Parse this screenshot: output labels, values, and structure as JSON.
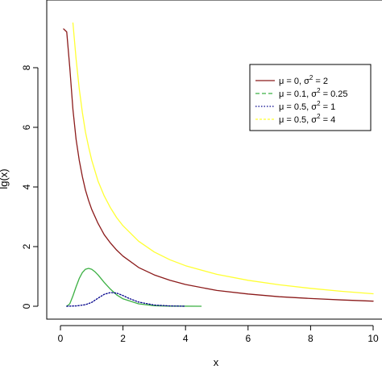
{
  "chart_data": {
    "type": "line",
    "title": "",
    "xlabel": "x",
    "ylabel": "lg(x)",
    "xlim": [
      0,
      10
    ],
    "ylim": [
      0,
      9
    ],
    "xticks": [
      "0",
      "2",
      "4",
      "6",
      "8",
      "10"
    ],
    "yticks": [
      "0",
      "2",
      "4",
      "6",
      "8"
    ],
    "legend_position": "top-right",
    "series": [
      {
        "legend": {
          "pre": "μ = 0,   σ",
          "sup": "2",
          "post": " = 2"
        },
        "color": "#8b1a1a",
        "style": "solid",
        "points": [
          [
            0.1,
            9.3
          ],
          [
            0.2,
            9.2
          ],
          [
            0.3,
            8.0
          ],
          [
            0.4,
            6.6
          ],
          [
            0.5,
            5.6
          ],
          [
            0.6,
            4.9
          ],
          [
            0.7,
            4.35
          ],
          [
            0.8,
            3.9
          ],
          [
            0.9,
            3.55
          ],
          [
            1.0,
            3.25
          ],
          [
            1.2,
            2.78
          ],
          [
            1.4,
            2.4
          ],
          [
            1.6,
            2.12
          ],
          [
            1.8,
            1.88
          ],
          [
            2.0,
            1.68
          ],
          [
            2.5,
            1.3
          ],
          [
            3.0,
            1.05
          ],
          [
            3.5,
            0.87
          ],
          [
            4.0,
            0.73
          ],
          [
            5.0,
            0.53
          ],
          [
            6.0,
            0.41
          ],
          [
            7.0,
            0.32
          ],
          [
            8.0,
            0.26
          ],
          [
            9.0,
            0.21
          ],
          [
            10.0,
            0.17
          ]
        ]
      },
      {
        "legend": {
          "pre": "μ = 0.1, σ",
          "sup": "2",
          "post": " = 0.25"
        },
        "color": "#3cb043",
        "style": "solid",
        "points": [
          [
            0.2,
            0.0
          ],
          [
            0.3,
            0.08
          ],
          [
            0.4,
            0.35
          ],
          [
            0.5,
            0.65
          ],
          [
            0.6,
            0.93
          ],
          [
            0.7,
            1.13
          ],
          [
            0.8,
            1.24
          ],
          [
            0.9,
            1.27
          ],
          [
            1.0,
            1.24
          ],
          [
            1.1,
            1.16
          ],
          [
            1.2,
            1.05
          ],
          [
            1.4,
            0.8
          ],
          [
            1.6,
            0.57
          ],
          [
            1.8,
            0.38
          ],
          [
            2.0,
            0.25
          ],
          [
            2.5,
            0.08
          ],
          [
            3.0,
            0.02
          ],
          [
            3.5,
            0.005
          ],
          [
            4.5,
            0.0
          ]
        ]
      },
      {
        "legend": {
          "pre": "μ = 0.5, σ",
          "sup": "2",
          "post": " = 1"
        },
        "color": "#00008b",
        "style": "dotted",
        "points": [
          [
            0.2,
            0.0
          ],
          [
            0.5,
            0.01
          ],
          [
            0.8,
            0.05
          ],
          [
            1.0,
            0.13
          ],
          [
            1.2,
            0.27
          ],
          [
            1.4,
            0.4
          ],
          [
            1.6,
            0.46
          ],
          [
            1.8,
            0.44
          ],
          [
            2.0,
            0.36
          ],
          [
            2.2,
            0.26
          ],
          [
            2.5,
            0.14
          ],
          [
            3.0,
            0.04
          ],
          [
            3.5,
            0.01
          ],
          [
            4.0,
            0.0
          ]
        ]
      },
      {
        "legend": {
          "pre": "μ = 0.5, σ",
          "sup": "2",
          "post": " = 4"
        },
        "color": "#ffff33",
        "style": "solid",
        "points": [
          [
            0.4,
            9.5
          ],
          [
            0.5,
            8.3
          ],
          [
            0.6,
            7.3
          ],
          [
            0.7,
            6.5
          ],
          [
            0.8,
            5.85
          ],
          [
            0.9,
            5.35
          ],
          [
            1.0,
            4.9
          ],
          [
            1.2,
            4.2
          ],
          [
            1.4,
            3.7
          ],
          [
            1.6,
            3.3
          ],
          [
            1.8,
            2.97
          ],
          [
            2.0,
            2.7
          ],
          [
            2.5,
            2.18
          ],
          [
            3.0,
            1.82
          ],
          [
            3.5,
            1.56
          ],
          [
            4.0,
            1.36
          ],
          [
            5.0,
            1.07
          ],
          [
            6.0,
            0.87
          ],
          [
            7.0,
            0.72
          ],
          [
            8.0,
            0.6
          ],
          [
            9.0,
            0.5
          ],
          [
            10.0,
            0.42
          ]
        ]
      }
    ]
  }
}
